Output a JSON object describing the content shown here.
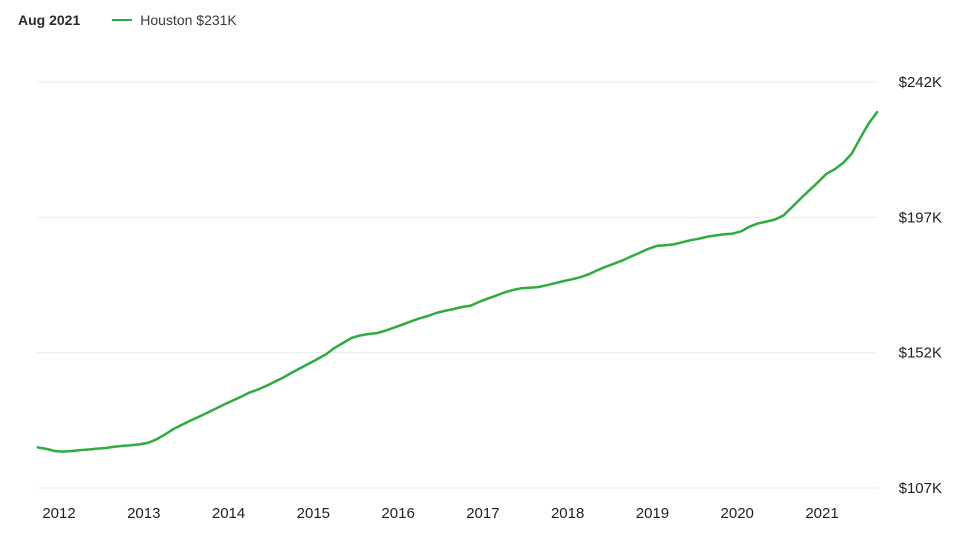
{
  "header": {
    "date_label": "Aug 2021",
    "legend_label": "Houston $231K"
  },
  "colors": {
    "series": "#2fac3f",
    "grid": "#ebebeb"
  },
  "chart_data": {
    "type": "line",
    "title": "",
    "xlabel": "",
    "ylabel": "",
    "x_ticks": [
      "2012",
      "2013",
      "2014",
      "2015",
      "2016",
      "2017",
      "2018",
      "2019",
      "2020",
      "2021"
    ],
    "y_ticks": [
      "$107K",
      "$152K",
      "$197K",
      "$242K"
    ],
    "y_tick_values": [
      107,
      152,
      197,
      242
    ],
    "ylim": [
      107,
      242
    ],
    "xlim": [
      2011.75,
      2021.7
    ],
    "grid": true,
    "legend": "top-left",
    "series": [
      {
        "name": "Houston $231K",
        "x": [
          2011.75,
          2011.85,
          2011.95,
          2012.05,
          2012.15,
          2012.25,
          2012.35,
          2012.45,
          2012.55,
          2012.65,
          2012.75,
          2012.85,
          2012.95,
          2013.05,
          2013.15,
          2013.25,
          2013.35,
          2013.45,
          2013.55,
          2013.65,
          2013.75,
          2013.85,
          2013.95,
          2014.05,
          2014.15,
          2014.25,
          2014.35,
          2014.45,
          2014.55,
          2014.65,
          2014.75,
          2014.85,
          2014.95,
          2015.05,
          2015.15,
          2015.25,
          2015.35,
          2015.45,
          2015.55,
          2015.65,
          2015.75,
          2015.85,
          2015.95,
          2016.05,
          2016.15,
          2016.25,
          2016.35,
          2016.45,
          2016.55,
          2016.65,
          2016.75,
          2016.85,
          2016.95,
          2017.05,
          2017.15,
          2017.25,
          2017.35,
          2017.45,
          2017.55,
          2017.65,
          2017.75,
          2017.85,
          2017.95,
          2018.05,
          2018.15,
          2018.25,
          2018.35,
          2018.45,
          2018.55,
          2018.65,
          2018.75,
          2018.85,
          2018.95,
          2019.05,
          2019.15,
          2019.25,
          2019.35,
          2019.45,
          2019.55,
          2019.65,
          2019.75,
          2019.85,
          2019.95,
          2020.05,
          2020.15,
          2020.25,
          2020.35,
          2020.45,
          2020.55,
          2020.65,
          2020.75,
          2020.85,
          2020.95,
          2021.05,
          2021.15,
          2021.25,
          2021.35,
          2021.45,
          2021.55,
          2021.65
        ],
        "values": [
          120.5,
          120.0,
          119.3,
          119.1,
          119.3,
          119.6,
          119.8,
          120.1,
          120.3,
          120.7,
          121.0,
          121.2,
          121.5,
          122.0,
          123.2,
          124.8,
          126.6,
          128.0,
          129.4,
          130.7,
          132.0,
          133.4,
          134.8,
          136.1,
          137.4,
          138.8,
          139.8,
          141.0,
          142.4,
          143.8,
          145.4,
          146.9,
          148.4,
          149.9,
          151.5,
          153.6,
          155.2,
          156.9,
          157.7,
          158.2,
          158.5,
          159.3,
          160.3,
          161.3,
          162.4,
          163.4,
          164.2,
          165.2,
          165.9,
          166.5,
          167.2,
          167.6,
          168.8,
          169.9,
          170.9,
          172.0,
          172.8,
          173.4,
          173.6,
          173.8,
          174.4,
          175.1,
          175.8,
          176.4,
          177.1,
          178.1,
          179.4,
          180.6,
          181.6,
          182.7,
          184.0,
          185.2,
          186.5,
          187.5,
          187.7,
          188.0,
          188.7,
          189.4,
          189.9,
          190.6,
          191.0,
          191.4,
          191.6,
          192.4,
          194.0,
          195.0,
          195.6,
          196.3,
          197.7,
          200.5,
          203.3,
          206.0,
          208.6,
          211.4,
          213.0,
          215.1,
          218.2,
          223.3,
          228.2,
          232.0
        ]
      }
    ]
  }
}
